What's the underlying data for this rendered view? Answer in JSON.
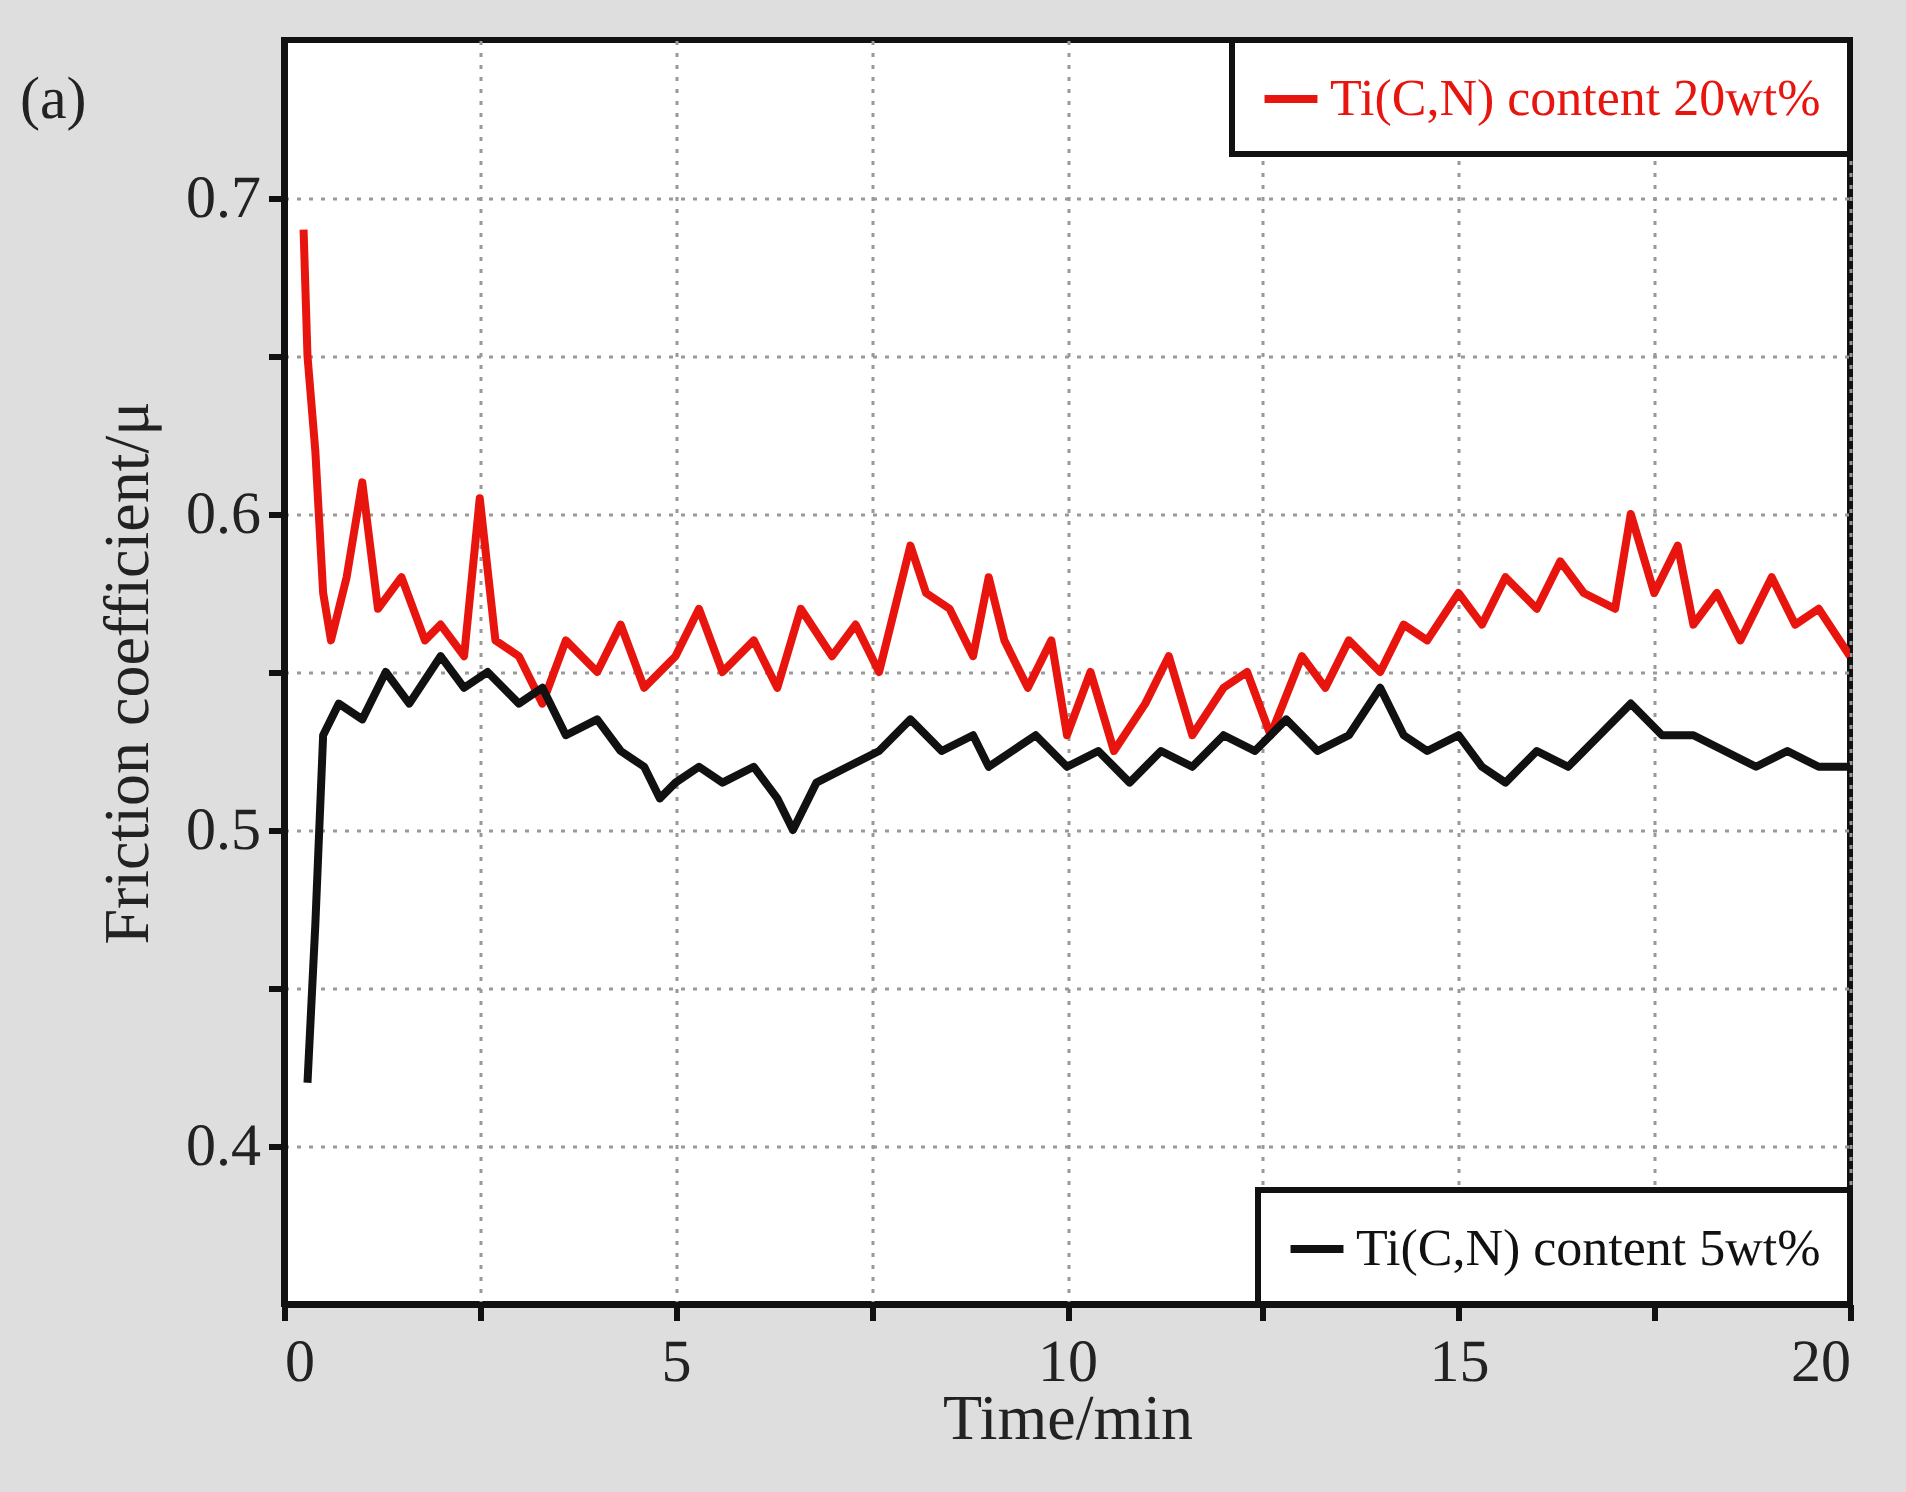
{
  "chart_data": {
    "type": "line",
    "xlabel": "Time/min",
    "ylabel": "Friction coefficient/μ",
    "annotations": [
      "(a)"
    ],
    "xlim": [
      0,
      20
    ],
    "ylim": [
      0.35,
      0.75
    ],
    "xticks": [
      0,
      {
        "value": 2.5,
        "label": null
      },
      5,
      {
        "value": 7.5,
        "label": null
      },
      10,
      {
        "value": 12.5,
        "label": null
      },
      15,
      {
        "value": 17.5,
        "label": null
      },
      20
    ],
    "yticks": [
      {
        "value": 0.4,
        "label": "0.4"
      },
      {
        "value": 0.45,
        "label": null
      },
      {
        "value": 0.5,
        "label": "0.5"
      },
      {
        "value": 0.55,
        "label": null
      },
      {
        "value": 0.6,
        "label": "0.6"
      },
      {
        "value": 0.65,
        "label": null
      },
      {
        "value": 0.7,
        "label": "0.7"
      }
    ],
    "grid": true,
    "legend": "right",
    "line_style": "solid",
    "marker": "none",
    "series": [
      {
        "name": "Ti(C,N) content 20wt%",
        "color": "#e8150f",
        "x": [
          0.25,
          0.3,
          0.4,
          0.5,
          0.6,
          0.8,
          1.0,
          1.2,
          1.5,
          1.8,
          2.0,
          2.3,
          2.5,
          2.7,
          3.0,
          3.3,
          3.6,
          4.0,
          4.3,
          4.6,
          5.0,
          5.3,
          5.6,
          6.0,
          6.3,
          6.6,
          7.0,
          7.3,
          7.6,
          8.0,
          8.2,
          8.5,
          8.8,
          9.0,
          9.2,
          9.5,
          9.8,
          10.0,
          10.3,
          10.6,
          11.0,
          11.3,
          11.6,
          12.0,
          12.3,
          12.6,
          13.0,
          13.3,
          13.6,
          14.0,
          14.3,
          14.6,
          15.0,
          15.3,
          15.6,
          16.0,
          16.3,
          16.6,
          17.0,
          17.2,
          17.5,
          17.8,
          18.0,
          18.3,
          18.6,
          19.0,
          19.3,
          19.6,
          20.0
        ],
        "values": [
          0.69,
          0.65,
          0.62,
          0.575,
          0.56,
          0.58,
          0.61,
          0.57,
          0.58,
          0.56,
          0.565,
          0.555,
          0.605,
          0.56,
          0.555,
          0.54,
          0.56,
          0.55,
          0.565,
          0.545,
          0.555,
          0.57,
          0.55,
          0.56,
          0.545,
          0.57,
          0.555,
          0.565,
          0.55,
          0.59,
          0.575,
          0.57,
          0.555,
          0.58,
          0.56,
          0.545,
          0.56,
          0.53,
          0.55,
          0.525,
          0.54,
          0.555,
          0.53,
          0.545,
          0.55,
          0.53,
          0.555,
          0.545,
          0.56,
          0.55,
          0.565,
          0.56,
          0.575,
          0.565,
          0.58,
          0.57,
          0.585,
          0.575,
          0.57,
          0.6,
          0.575,
          0.59,
          0.565,
          0.575,
          0.56,
          0.58,
          0.565,
          0.57,
          0.555
        ]
      },
      {
        "name": "Ti(C,N) content 5wt%",
        "color": "#111111",
        "x": [
          0.3,
          0.4,
          0.5,
          0.7,
          1.0,
          1.3,
          1.6,
          2.0,
          2.3,
          2.6,
          3.0,
          3.3,
          3.6,
          4.0,
          4.3,
          4.6,
          4.8,
          5.0,
          5.3,
          5.6,
          6.0,
          6.3,
          6.5,
          6.8,
          7.2,
          7.6,
          8.0,
          8.4,
          8.8,
          9.0,
          9.3,
          9.6,
          10.0,
          10.4,
          10.8,
          11.2,
          11.6,
          12.0,
          12.4,
          12.8,
          13.2,
          13.6,
          14.0,
          14.3,
          14.6,
          15.0,
          15.3,
          15.6,
          16.0,
          16.4,
          16.8,
          17.2,
          17.6,
          18.0,
          18.4,
          18.8,
          19.2,
          19.6,
          20.0
        ],
        "values": [
          0.42,
          0.47,
          0.53,
          0.54,
          0.535,
          0.55,
          0.54,
          0.555,
          0.545,
          0.55,
          0.54,
          0.545,
          0.53,
          0.535,
          0.525,
          0.52,
          0.51,
          0.515,
          0.52,
          0.515,
          0.52,
          0.51,
          0.5,
          0.515,
          0.52,
          0.525,
          0.535,
          0.525,
          0.53,
          0.52,
          0.525,
          0.53,
          0.52,
          0.525,
          0.515,
          0.525,
          0.52,
          0.53,
          0.525,
          0.535,
          0.525,
          0.53,
          0.545,
          0.53,
          0.525,
          0.53,
          0.52,
          0.515,
          0.525,
          0.52,
          0.53,
          0.54,
          0.53,
          0.53,
          0.525,
          0.52,
          0.525,
          0.52,
          0.52
        ]
      }
    ]
  }
}
